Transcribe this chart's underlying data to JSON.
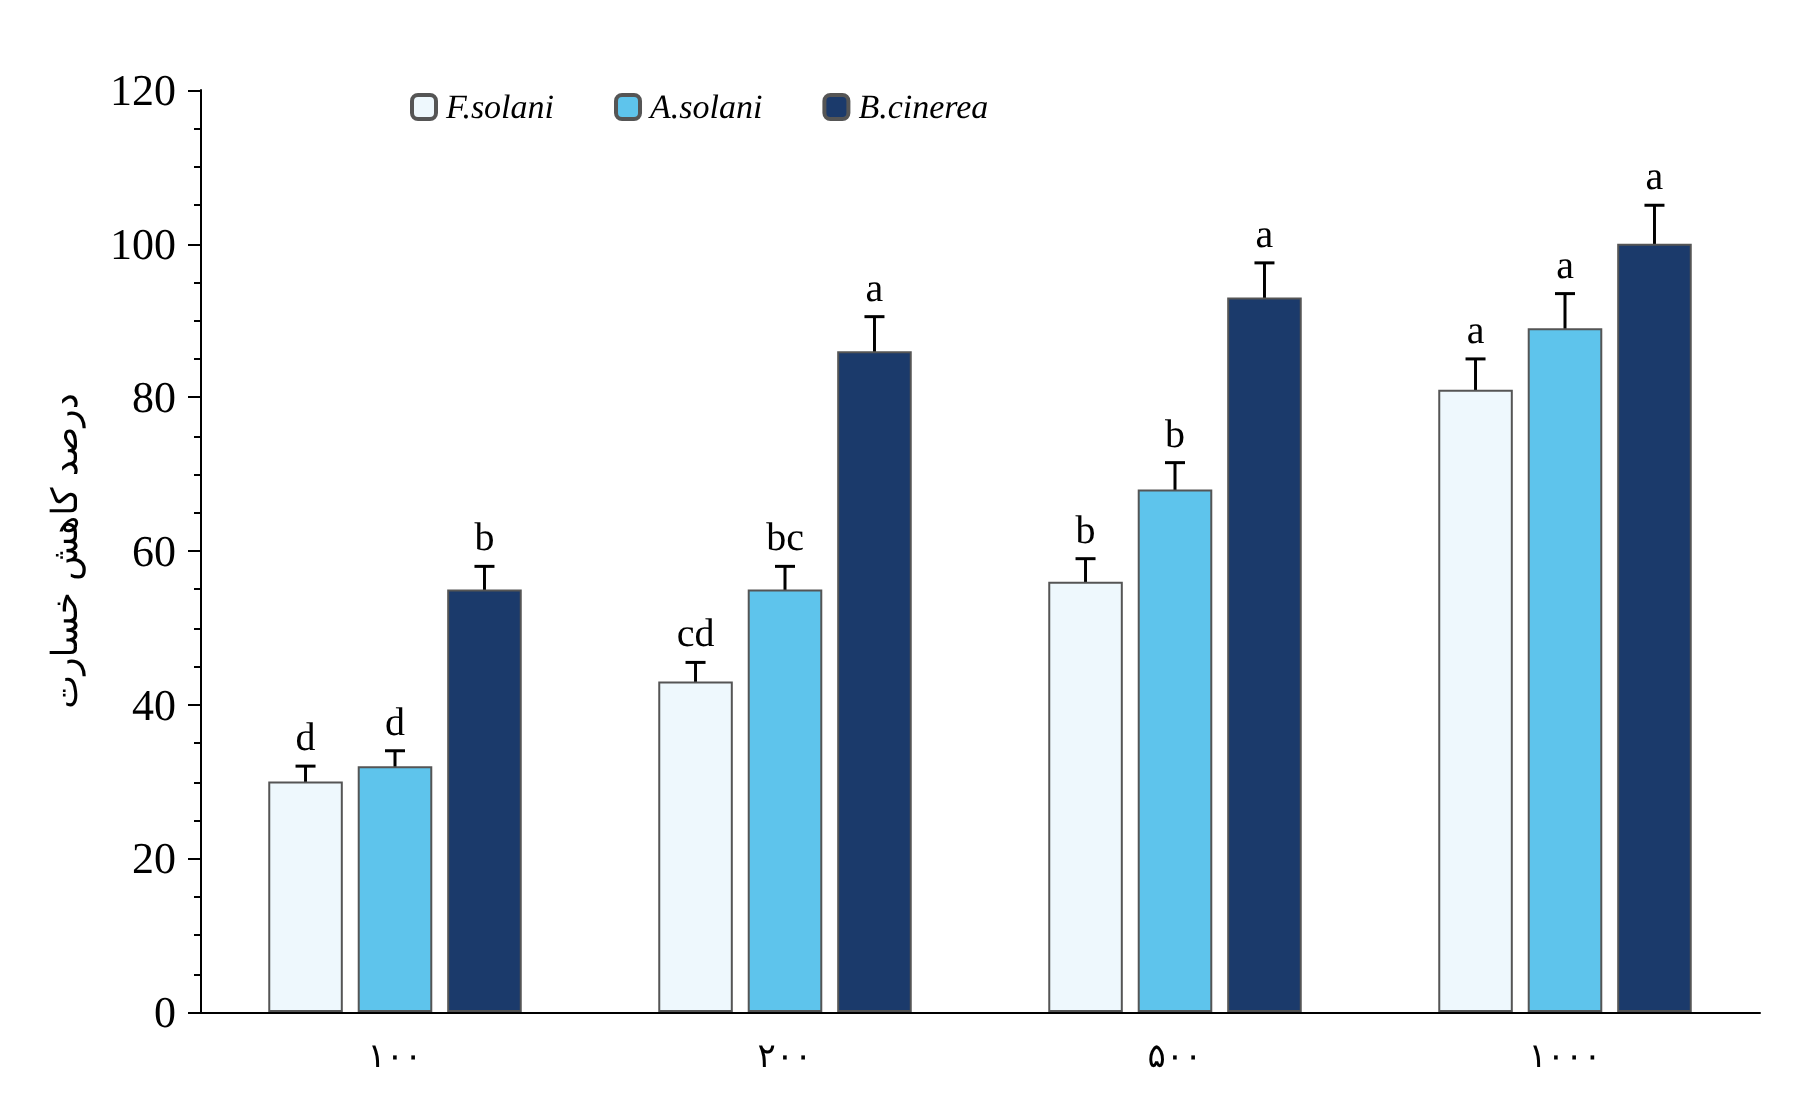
{
  "chart_data": {
    "type": "bar",
    "ylabel": "درصد کاهش خسارت",
    "categories": [
      "۱۰۰",
      "۲۰۰",
      "۵۰۰",
      "۱۰۰۰"
    ],
    "series": [
      {
        "name": "F.solani",
        "color": "#eef8fd",
        "values": [
          30,
          43,
          56,
          81
        ],
        "errors": [
          2,
          2.5,
          3,
          4
        ]
      },
      {
        "name": "A.solani",
        "color": "#5ec4ec",
        "values": [
          32,
          55,
          68,
          89
        ],
        "errors": [
          2,
          3,
          3.5,
          4.5
        ]
      },
      {
        "name": "B.cinerea",
        "color": "#1b3a6b",
        "values": [
          55,
          86,
          93,
          100
        ],
        "errors": [
          3,
          4.5,
          4.5,
          5
        ]
      }
    ],
    "annotations": [
      "d",
      "d",
      "b",
      "cd",
      "bc",
      "a",
      "b",
      "b",
      "a",
      "a",
      "a",
      "a"
    ],
    "ylim": [
      0,
      120
    ],
    "yticks": [
      0,
      20,
      40,
      60,
      80,
      100,
      120
    ],
    "grid": false,
    "legend": "top"
  }
}
